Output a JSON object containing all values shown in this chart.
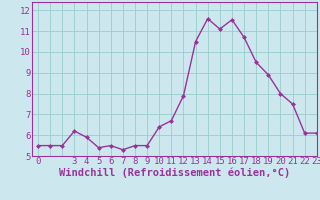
{
  "x": [
    0,
    1,
    2,
    3,
    4,
    5,
    6,
    7,
    8,
    9,
    10,
    11,
    12,
    13,
    14,
    15,
    16,
    17,
    18,
    19,
    20,
    21,
    22,
    23
  ],
  "y": [
    5.5,
    5.5,
    5.5,
    6.2,
    5.9,
    5.4,
    5.5,
    5.3,
    5.5,
    5.5,
    6.4,
    6.7,
    7.9,
    10.5,
    11.6,
    11.1,
    11.55,
    10.7,
    9.5,
    8.9,
    8.0,
    7.5,
    6.1,
    6.1
  ],
  "xlim": [
    -0.5,
    23
  ],
  "ylim": [
    5,
    12.4
  ],
  "yticks": [
    5,
    6,
    7,
    8,
    9,
    10,
    11,
    12
  ],
  "xtick_labels": [
    "0",
    "",
    "",
    "3",
    "4",
    "5",
    "6",
    "7",
    "8",
    "9",
    "10",
    "11",
    "12",
    "13",
    "14",
    "15",
    "16",
    "17",
    "18",
    "19",
    "20",
    "21",
    "22",
    "23"
  ],
  "xlabel": "Windchill (Refroidissement éolien,°C)",
  "line_color": "#993399",
  "marker_color": "#993399",
  "background_color": "#cce8ee",
  "grid_color": "#99cccc",
  "tick_label_fontsize": 6.5,
  "xlabel_fontsize": 7.5,
  "marker": "D",
  "marker_size": 2.0,
  "line_width": 1.0
}
